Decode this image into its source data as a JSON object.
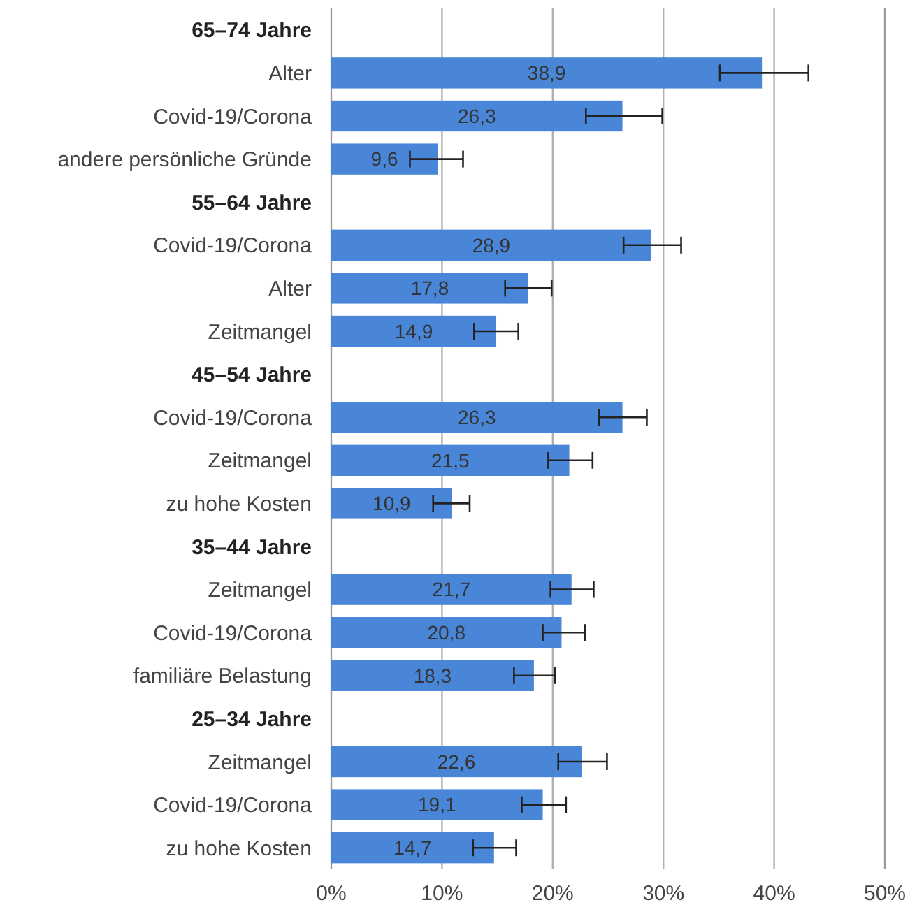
{
  "chart_data": {
    "type": "bar",
    "orientation": "horizontal",
    "categories": [
      "65–74 Jahre",
      "Alter",
      "Covid-19/Corona",
      "andere persönliche Gründe",
      "55–64 Jahre",
      "Covid-19/Corona",
      "Alter",
      "Zeitmangel",
      "45–54 Jahre",
      "Covid-19/Corona",
      "Zeitmangel",
      "zu hohe Kosten",
      "35–44 Jahre",
      "Zeitmangel",
      "Covid-19/Corona",
      "familiäre Belastung",
      "25–34 Jahre",
      "Zeitmangel",
      "Covid-19/Corona",
      "zu hohe Kosten"
    ],
    "values": [
      null,
      38.9,
      26.3,
      9.6,
      null,
      28.9,
      17.8,
      14.9,
      null,
      26.3,
      21.5,
      10.9,
      null,
      21.7,
      20.8,
      18.3,
      null,
      22.6,
      19.1,
      14.7
    ],
    "value_labels": [
      null,
      "38,9",
      "26,3",
      "9,6",
      null,
      "28,9",
      "17,8",
      "14,9",
      null,
      "26,3",
      "21,5",
      "10,9",
      null,
      "21,7",
      "20,8",
      "18,3",
      null,
      "22,6",
      "19,1",
      "14,7"
    ],
    "errors": [
      null,
      [
        35.1,
        43.1
      ],
      [
        23.0,
        29.9
      ],
      [
        7.1,
        11.9
      ],
      null,
      [
        26.4,
        31.6
      ],
      [
        15.7,
        19.9
      ],
      [
        12.9,
        16.9
      ],
      null,
      [
        24.2,
        28.5
      ],
      [
        19.6,
        23.6
      ],
      [
        9.2,
        12.5
      ],
      null,
      [
        19.8,
        23.7
      ],
      [
        19.1,
        22.9
      ],
      [
        16.5,
        20.2
      ],
      null,
      [
        20.5,
        24.9
      ],
      [
        17.2,
        21.2
      ],
      [
        12.8,
        16.7
      ]
    ],
    "color": "#4a86d8",
    "xlim": [
      0,
      50
    ],
    "xticks": [
      {
        "value": 0,
        "label": "0%"
      },
      {
        "value": 10,
        "label": "10%"
      },
      {
        "value": 20,
        "label": "20%"
      },
      {
        "value": 30,
        "label": "30%"
      },
      {
        "value": 40,
        "label": "40%"
      },
      {
        "value": 50,
        "label": "50%"
      }
    ],
    "grid": "x"
  }
}
